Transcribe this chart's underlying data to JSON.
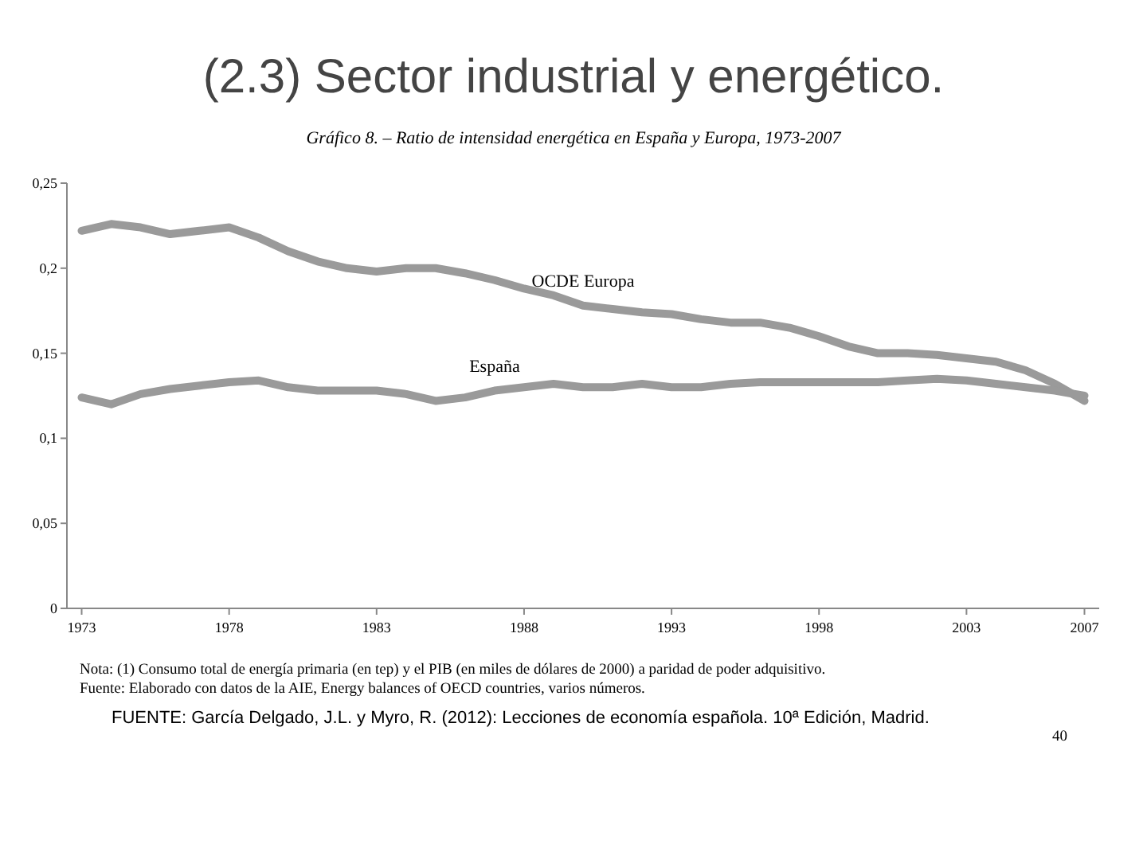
{
  "chart_data": {
    "type": "line",
    "title": "(2.3) Sector industrial y energético.",
    "subtitle": "Gráfico 8. – Ratio de intensidad energética en España y Europa, 1973-2007",
    "x": [
      1973,
      1974,
      1975,
      1976,
      1977,
      1978,
      1979,
      1980,
      1981,
      1982,
      1983,
      1984,
      1985,
      1986,
      1987,
      1988,
      1989,
      1990,
      1991,
      1992,
      1993,
      1994,
      1995,
      1996,
      1997,
      1998,
      1999,
      2000,
      2001,
      2002,
      2003,
      2004,
      2005,
      2006,
      2007
    ],
    "series": [
      {
        "name": "OCDE Europa",
        "color": "#9a9a9a",
        "values": [
          0.222,
          0.226,
          0.224,
          0.22,
          0.222,
          0.224,
          0.218,
          0.21,
          0.204,
          0.2,
          0.198,
          0.2,
          0.2,
          0.197,
          0.193,
          0.188,
          0.184,
          0.178,
          0.176,
          0.174,
          0.173,
          0.17,
          0.168,
          0.168,
          0.165,
          0.16,
          0.154,
          0.15,
          0.15,
          0.149,
          0.147,
          0.145,
          0.14,
          0.132,
          0.122
        ]
      },
      {
        "name": "España",
        "color": "#9a9a9a",
        "values": [
          0.124,
          0.12,
          0.126,
          0.129,
          0.131,
          0.133,
          0.134,
          0.13,
          0.128,
          0.128,
          0.128,
          0.126,
          0.122,
          0.124,
          0.128,
          0.13,
          0.132,
          0.13,
          0.13,
          0.132,
          0.13,
          0.13,
          0.132,
          0.133,
          0.133,
          0.133,
          0.133,
          0.133,
          0.134,
          0.135,
          0.134,
          0.132,
          0.13,
          0.128,
          0.125
        ]
      }
    ],
    "xlim": [
      1972.5,
      2007.5
    ],
    "xticks": [
      1973,
      1978,
      1983,
      1988,
      1993,
      1998,
      2003,
      2007
    ],
    "ylim": [
      0,
      0.25
    ],
    "yticks": [
      {
        "value": 0,
        "label": "0"
      },
      {
        "value": 0.05,
        "label": "0,05"
      },
      {
        "value": 0.1,
        "label": "0,1"
      },
      {
        "value": 0.15,
        "label": "0,15"
      },
      {
        "value": 0.2,
        "label": "0,2"
      },
      {
        "value": 0.25,
        "label": "0,25"
      }
    ],
    "grid": false,
    "legend": false,
    "line_style": "solid",
    "marker": "none",
    "annotations": [
      "Nota: (1) Consumo total de energía primaria (en tep) y el PIB (en miles de dólares de 2000) a paridad de poder adquisitivo.",
      "Fuente: Elaborado con datos de la AIE, Energy balances of OECD countries, varios números.",
      "FUENTE: García Delgado, J.L. y Myro, R. (2012): Lecciones de economía española. 10ª Edición, Madrid.",
      "40"
    ]
  }
}
